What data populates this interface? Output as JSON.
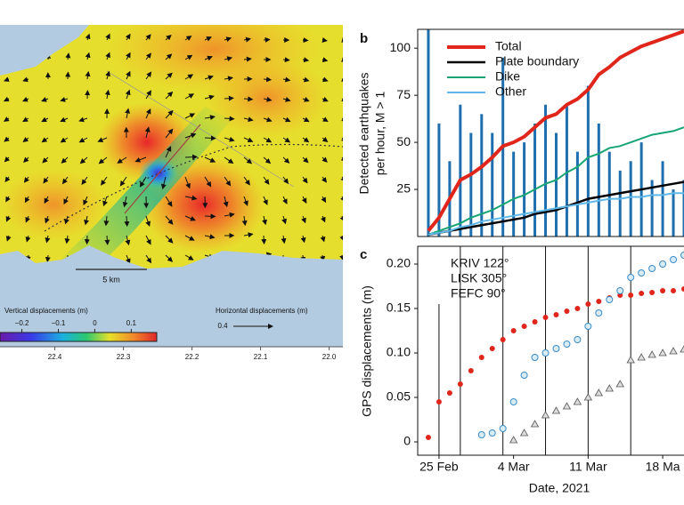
{
  "chart_data": [
    {
      "type": "map",
      "xlim": [
        22.48,
        21.98
      ],
      "xticks": [
        22.4,
        22.3,
        22.2,
        22.1,
        {
          "value": 22,
          "label": "22.0"
        }
      ],
      "colorbar": {
        "title": "Vertical displacements (m)",
        "clim": [
          -0.26,
          0.17
        ],
        "ticks": [
          {
            "value": -0.2,
            "label": "−0.2"
          },
          {
            "value": -0.1,
            "label": "−0.1"
          },
          0,
          0.1
        ]
      },
      "arrow_scale": {
        "title": "Horizontal displacements (m)",
        "value": 0.4
      },
      "scale_bar": "5 km"
    },
    {
      "type": "line",
      "panel_label": "b",
      "ylabel": [
        "Detected earthquakes",
        "per hour, M > 1"
      ],
      "x": [
        "2021-02-24",
        "2021-02-25",
        "2021-02-26",
        "2021-02-27",
        "2021-02-28",
        "2021-03-01",
        "2021-03-02",
        "2021-03-03",
        "2021-03-04",
        "2021-03-05",
        "2021-03-06",
        "2021-03-07",
        "2021-03-08",
        "2021-03-09",
        "2021-03-10",
        "2021-03-11",
        "2021-03-12",
        "2021-03-13",
        "2021-03-14",
        "2021-03-15",
        "2021-03-16",
        "2021-03-17",
        "2021-03-18",
        "2021-03-19",
        "2021-03-20"
      ],
      "xlim": [
        "2021-02-23",
        "2021-03-20"
      ],
      "ylim": [
        0,
        110
      ],
      "yticks": [
        25,
        50,
        75,
        100
      ],
      "legend": "upper left",
      "bars": {
        "color": "#1f6fae",
        "values": [
          110,
          60,
          40,
          70,
          55,
          65,
          55,
          95,
          45,
          50,
          60,
          70,
          55,
          70,
          45,
          80,
          60,
          45,
          35,
          40,
          50,
          30,
          40,
          25,
          30
        ]
      },
      "series": [
        {
          "name": "Total",
          "color": "#e0261b",
          "width": 4,
          "values": [
            3,
            10,
            20,
            30,
            33,
            37,
            42,
            48,
            50,
            53,
            58,
            63,
            65,
            70,
            73,
            78,
            86,
            90,
            95,
            98,
            101,
            103,
            105,
            107,
            109
          ]
        },
        {
          "name": "Plate boundary",
          "color": "#000000",
          "width": 2.5,
          "values": [
            1,
            2,
            3,
            4,
            5,
            6,
            7,
            8,
            9,
            10,
            12,
            13,
            14,
            16,
            18,
            20,
            21,
            22,
            23,
            24,
            25,
            26,
            27,
            28,
            29
          ]
        },
        {
          "name": "Dike",
          "color": "#17a673",
          "width": 2,
          "values": [
            1,
            3,
            5,
            7,
            10,
            12,
            14,
            17,
            20,
            22,
            25,
            28,
            30,
            34,
            37,
            42,
            44,
            47,
            48,
            50,
            52,
            54,
            55,
            56,
            58
          ]
        },
        {
          "name": "Other",
          "color": "#5fb8e8",
          "width": 2,
          "values": [
            1,
            2,
            3,
            5,
            6,
            8,
            9,
            10,
            11,
            12,
            13,
            14,
            15,
            16,
            17,
            18,
            19,
            20,
            20,
            21,
            21,
            22,
            22,
            23,
            23
          ]
        }
      ]
    },
    {
      "type": "scatter",
      "panel_label": "c",
      "xlabel": "Date, 2021",
      "ylabel": "GPS displacements (m)",
      "x": [
        "2021-02-24",
        "2021-02-25",
        "2021-02-26",
        "2021-02-27",
        "2021-02-28",
        "2021-03-01",
        "2021-03-02",
        "2021-03-03",
        "2021-03-04",
        "2021-03-05",
        "2021-03-06",
        "2021-03-07",
        "2021-03-08",
        "2021-03-09",
        "2021-03-10",
        "2021-03-11",
        "2021-03-12",
        "2021-03-13",
        "2021-03-14",
        "2021-03-15",
        "2021-03-16",
        "2021-03-17",
        "2021-03-18",
        "2021-03-19",
        "2021-03-20"
      ],
      "xlim": [
        "2021-02-23",
        "2021-03-20"
      ],
      "xticks": [
        {
          "value": "2021-02-25",
          "label": "25 Feb"
        },
        {
          "value": "2021-03-04",
          "label": "4 Mar"
        },
        {
          "value": "2021-03-11",
          "label": "11 Mar"
        },
        {
          "value": "2021-03-18",
          "label": "18 Ma"
        }
      ],
      "ylim": [
        -0.015,
        0.22
      ],
      "yticks": [
        0,
        0.05,
        {
          "value": 0.1,
          "label": "0.10"
        },
        0.15,
        {
          "value": 0.2,
          "label": "0.20"
        }
      ],
      "event_dates": [
        "2021-02-25",
        "2021-02-27",
        "2021-03-03",
        "2021-03-07",
        "2021-03-11",
        "2021-03-15"
      ],
      "series": [
        {
          "name": "KRIV 122°",
          "color": "#e0261b",
          "marker": "filled-circle",
          "values": [
            0.005,
            0.045,
            0.055,
            0.065,
            0.08,
            0.095,
            0.105,
            0.115,
            0.125,
            0.13,
            0.135,
            0.14,
            0.143,
            0.147,
            0.15,
            0.155,
            0.158,
            0.162,
            0.165,
            0.165,
            0.167,
            0.168,
            0.17,
            0.17,
            0.172
          ]
        },
        {
          "name": "LISK 305°",
          "color": "#3a8cc8",
          "marker": "open-circle",
          "values": [
            null,
            null,
            null,
            null,
            null,
            0.008,
            0.01,
            0.015,
            0.045,
            0.075,
            0.095,
            0.1,
            0.105,
            0.11,
            0.115,
            0.13,
            0.145,
            0.16,
            0.17,
            0.185,
            0.19,
            0.195,
            0.2,
            0.205,
            0.21
          ]
        },
        {
          "name": "FEFC 90°",
          "color": "#555555",
          "marker": "triangle",
          "values": [
            null,
            null,
            null,
            null,
            null,
            null,
            null,
            null,
            0.002,
            0.01,
            0.02,
            0.03,
            0.035,
            0.04,
            0.045,
            0.05,
            0.055,
            0.06,
            0.065,
            0.092,
            0.095,
            0.098,
            0.1,
            0.102,
            0.104
          ]
        }
      ]
    }
  ]
}
